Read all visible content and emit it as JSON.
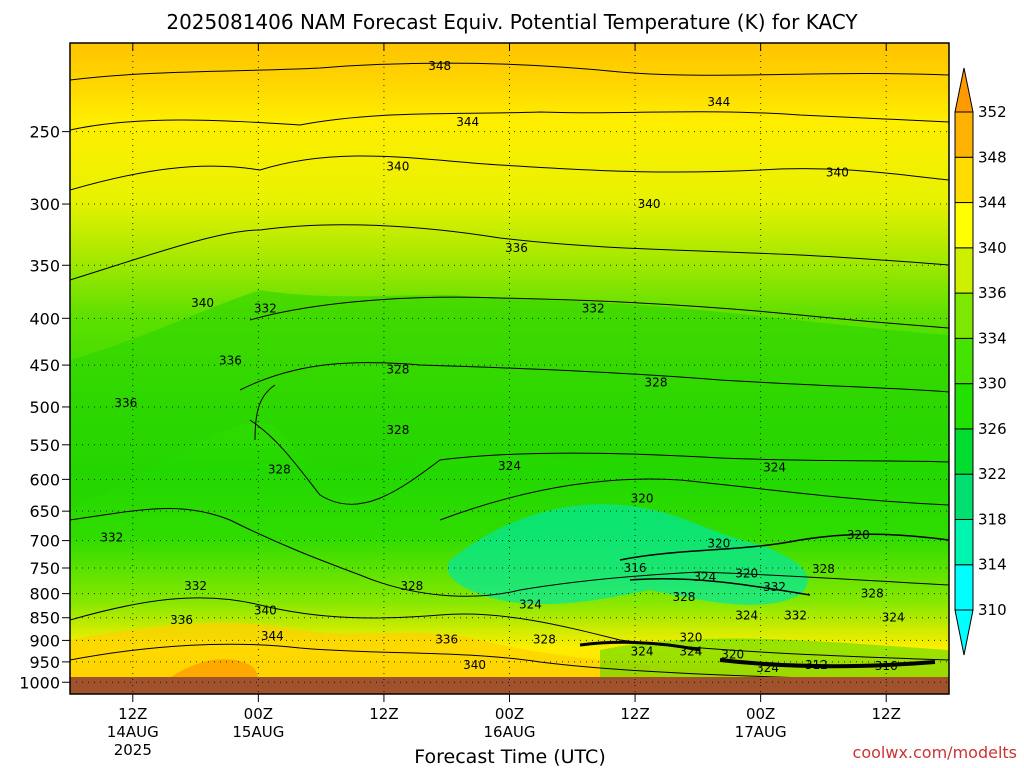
{
  "chart_data": {
    "type": "heatmap",
    "title": "2025081406 NAM Forecast Equiv. Potential Temperature (K) for KACY",
    "xlabel": "Forecast Time (UTC)",
    "ylabel": "",
    "y_scale": "log",
    "y_reversed": true,
    "ylim": [
      1030,
      200
    ],
    "y_ticks": [
      250,
      300,
      350,
      400,
      450,
      500,
      550,
      600,
      650,
      700,
      750,
      800,
      850,
      900,
      950,
      1000
    ],
    "x_ticks": [
      {
        "hour": 6,
        "line1": "12Z",
        "line2": "14AUG",
        "line3": "2025"
      },
      {
        "hour": 24,
        "line1": "00Z",
        "line2": "15AUG",
        "line3": ""
      },
      {
        "hour": 42,
        "line1": "12Z",
        "line2": "",
        "line3": ""
      },
      {
        "hour": 60,
        "line1": "00Z",
        "line2": "16AUG",
        "line3": ""
      },
      {
        "hour": 78,
        "line1": "12Z",
        "line2": "",
        "line3": ""
      },
      {
        "hour": 96,
        "line1": "00Z",
        "line2": "17AUG",
        "line3": ""
      },
      {
        "hour": 114,
        "line1": "12Z",
        "line2": "",
        "line3": ""
      }
    ],
    "xlim": [
      -3,
      123
    ],
    "grid": true,
    "colorbar": {
      "levels": [
        310,
        314,
        318,
        322,
        326,
        330,
        334,
        336,
        340,
        344,
        348,
        352
      ],
      "colors": [
        "#00ffff",
        "#00f5b0",
        "#00e070",
        "#00dd30",
        "#22e000",
        "#44e400",
        "#7ee800",
        "#ccf000",
        "#ffff00",
        "#ffdc00",
        "#ffb300",
        "#ff9a00"
      ]
    },
    "contour_labels": [
      {
        "hour": 50,
        "p": 212,
        "value": "348"
      },
      {
        "hour": 90,
        "p": 232,
        "value": "344"
      },
      {
        "hour": 54,
        "p": 244,
        "value": "344"
      },
      {
        "hour": 44,
        "p": 273,
        "value": "340"
      },
      {
        "hour": 107,
        "p": 277,
        "value": "340"
      },
      {
        "hour": 80,
        "p": 300,
        "value": "340"
      },
      {
        "hour": 61,
        "p": 335,
        "value": "336"
      },
      {
        "hour": 16,
        "p": 385,
        "value": "340"
      },
      {
        "hour": 25,
        "p": 390,
        "value": "332"
      },
      {
        "hour": 72,
        "p": 390,
        "value": "332"
      },
      {
        "hour": 20,
        "p": 445,
        "value": "336"
      },
      {
        "hour": 44,
        "p": 455,
        "value": "328"
      },
      {
        "hour": 81,
        "p": 470,
        "value": "328"
      },
      {
        "hour": 5,
        "p": 495,
        "value": "336"
      },
      {
        "hour": 44,
        "p": 530,
        "value": "328"
      },
      {
        "hour": 60,
        "p": 580,
        "value": "324"
      },
      {
        "hour": 98,
        "p": 582,
        "value": "324"
      },
      {
        "hour": 27,
        "p": 585,
        "value": "328"
      },
      {
        "hour": 79,
        "p": 630,
        "value": "320"
      },
      {
        "hour": 110,
        "p": 690,
        "value": "320"
      },
      {
        "hour": 3,
        "p": 695,
        "value": "332"
      },
      {
        "hour": 90,
        "p": 705,
        "value": "320"
      },
      {
        "hour": 78,
        "p": 750,
        "value": "316"
      },
      {
        "hour": 88,
        "p": 767,
        "value": "324"
      },
      {
        "hour": 94,
        "p": 760,
        "value": "320"
      },
      {
        "hour": 105,
        "p": 752,
        "value": "328"
      },
      {
        "hour": 15,
        "p": 785,
        "value": "332"
      },
      {
        "hour": 46,
        "p": 785,
        "value": "328"
      },
      {
        "hour": 98,
        "p": 787,
        "value": "332"
      },
      {
        "hour": 112,
        "p": 800,
        "value": "328"
      },
      {
        "hour": 85,
        "p": 807,
        "value": "328"
      },
      {
        "hour": 63,
        "p": 822,
        "value": "324"
      },
      {
        "hour": 25,
        "p": 835,
        "value": "340"
      },
      {
        "hour": 94,
        "p": 845,
        "value": "324"
      },
      {
        "hour": 101,
        "p": 845,
        "value": "332"
      },
      {
        "hour": 115,
        "p": 850,
        "value": "324"
      },
      {
        "hour": 13,
        "p": 855,
        "value": "336"
      },
      {
        "hour": 26,
        "p": 890,
        "value": "344"
      },
      {
        "hour": 51,
        "p": 898,
        "value": "336"
      },
      {
        "hour": 65,
        "p": 898,
        "value": "328"
      },
      {
        "hour": 86,
        "p": 893,
        "value": "320"
      },
      {
        "hour": 79,
        "p": 925,
        "value": "324"
      },
      {
        "hour": 86,
        "p": 925,
        "value": "324"
      },
      {
        "hour": 92,
        "p": 933,
        "value": "320"
      },
      {
        "hour": 55,
        "p": 958,
        "value": "340"
      },
      {
        "hour": 97,
        "p": 965,
        "value": "324"
      },
      {
        "hour": 104,
        "p": 958,
        "value": "312"
      },
      {
        "hour": 114,
        "p": 960,
        "value": "316"
      }
    ]
  },
  "credit": "coolwx.com/modelts"
}
